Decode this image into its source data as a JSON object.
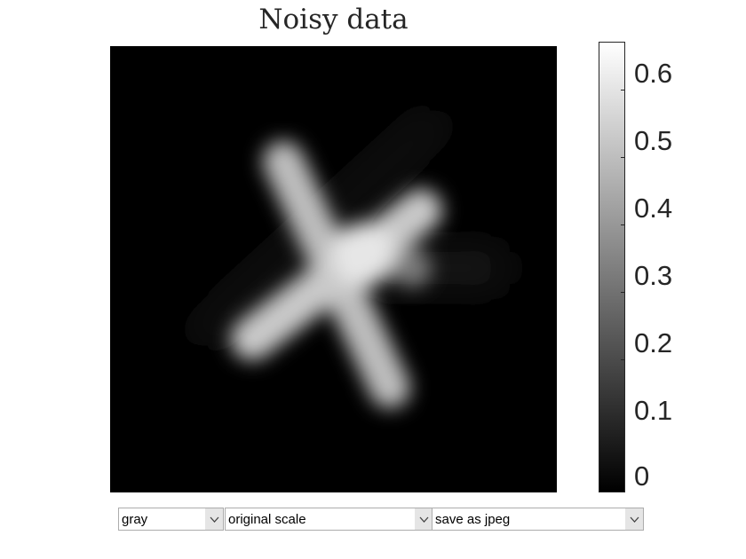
{
  "chart_data": {
    "type": "heatmap",
    "title": "Noisy data",
    "colormap": "gray",
    "colorbar": {
      "range": [
        0,
        0.67
      ],
      "ticks": [
        0,
        0.1,
        0.2,
        0.3,
        0.4,
        0.5,
        0.6
      ],
      "tick_labels": [
        "0",
        "0.1",
        "0.2",
        "0.3",
        "0.4",
        "0.5",
        "0.6"
      ]
    },
    "axes_visible": false
  },
  "controls": {
    "colormap_select": {
      "value": "gray",
      "icon": "chevron-down-icon"
    },
    "scale_select": {
      "value": "original scale",
      "icon": "chevron-down-icon"
    },
    "save_select": {
      "value": "save as jpeg",
      "icon": "chevron-down-icon"
    }
  }
}
